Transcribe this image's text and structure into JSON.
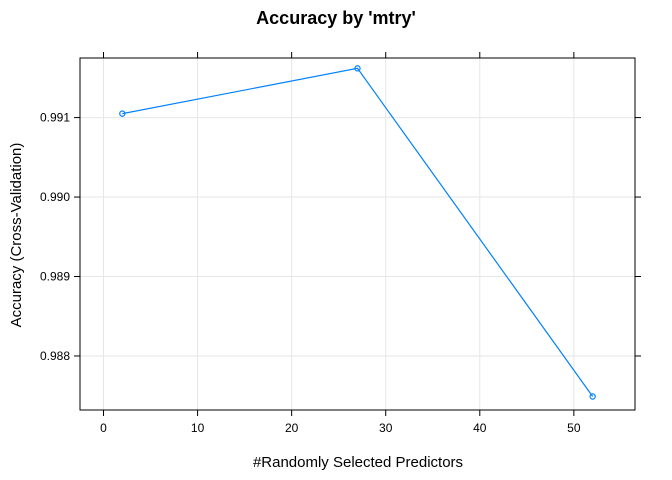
{
  "chart_data": {
    "type": "line",
    "title": "Accuracy by 'mtry'",
    "xlabel": "#Randomly Selected Predictors",
    "ylabel": "Accuracy (Cross-Validation)",
    "xlim": [
      -2.5,
      56.5
    ],
    "ylim": [
      0.98732,
      0.99175
    ],
    "x_ticks": [
      0,
      10,
      20,
      30,
      40,
      50
    ],
    "x_tick_labels": [
      "0",
      "10",
      "20",
      "30",
      "40",
      "50"
    ],
    "y_ticks": [
      0.988,
      0.989,
      0.99,
      0.991
    ],
    "y_tick_labels": [
      "0.988",
      "0.989",
      "0.990",
      "0.991"
    ],
    "grid": true,
    "series": [
      {
        "color": "#0080ff",
        "x": [
          2,
          27,
          52
        ],
        "y": [
          0.99105,
          0.99162,
          0.98749
        ]
      }
    ]
  }
}
